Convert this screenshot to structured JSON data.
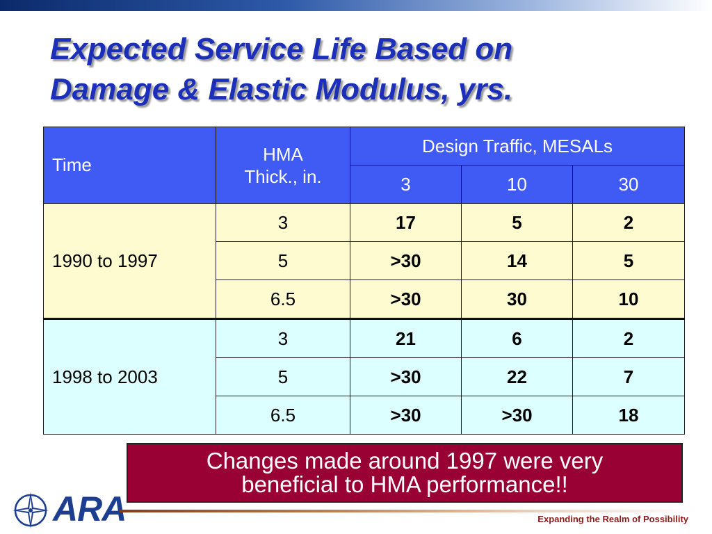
{
  "slide": {
    "title_line1": "Expected Service Life Based on",
    "title_line2": "Damage & Elastic Modulus, yrs."
  },
  "table": {
    "header": {
      "time": "Time",
      "hma_line1": "HMA",
      "hma_line2": "Thick., in.",
      "design_traffic": "Design Traffic, MESALs",
      "traffic_levels": [
        "3",
        "10",
        "30"
      ]
    },
    "periods": [
      {
        "label": "1990 to 1997",
        "rows": [
          {
            "thickness": "3",
            "values": [
              "17",
              "5",
              "2"
            ]
          },
          {
            "thickness": "5",
            "values": [
              ">30",
              "14",
              "5"
            ]
          },
          {
            "thickness": "6.5",
            "values": [
              ">30",
              "30",
              "10"
            ]
          }
        ]
      },
      {
        "label": "1998 to 2003",
        "rows": [
          {
            "thickness": "3",
            "values": [
              "21",
              "6",
              "2"
            ]
          },
          {
            "thickness": "5",
            "values": [
              ">30",
              "22",
              "7"
            ]
          },
          {
            "thickness": "6.5",
            "values": [
              ">30",
              ">30",
              "18"
            ]
          }
        ]
      }
    ]
  },
  "note": {
    "line1": "Changes made around 1997 were very",
    "line2": "beneficial to HMA performance!!"
  },
  "footer": {
    "logo_text": "ARA",
    "tagline": "Expanding the Realm of Possibility"
  },
  "colors": {
    "header_blue": "#3f5bf3",
    "period1_bg": "#fffbd0",
    "period2_bg": "#dcffff",
    "note_bg": "#990033",
    "title_blue": "#1c2fb8"
  },
  "icons": {
    "logo": "compass-star-icon"
  }
}
